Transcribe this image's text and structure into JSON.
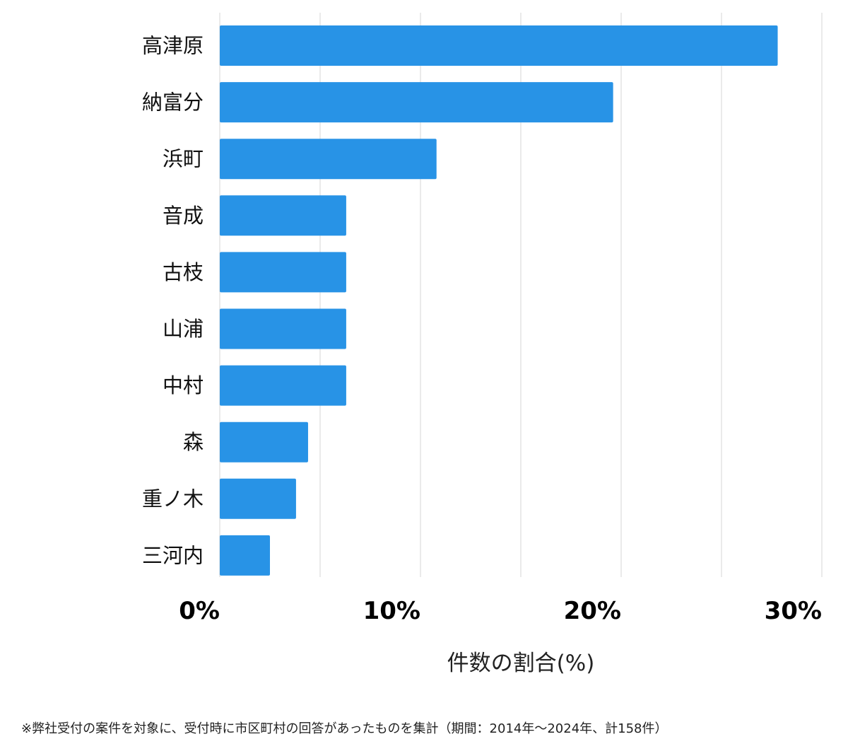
{
  "chart_data": {
    "type": "bar",
    "orientation": "horizontal",
    "categories": [
      "高津原",
      "納富分",
      "浜町",
      "音成",
      "古枝",
      "山浦",
      "中村",
      "森",
      "重ノ木",
      "三河内"
    ],
    "values": [
      27.8,
      19.6,
      10.8,
      6.3,
      6.3,
      6.3,
      6.3,
      4.4,
      3.8,
      2.5
    ],
    "xlabel": "件数の割合(%)",
    "ylabel": "",
    "xlim": [
      0,
      30
    ],
    "xticks": [
      0,
      10,
      20,
      30
    ],
    "xtick_labels": [
      "0%",
      "10%",
      "20%",
      "30%"
    ],
    "gridlines_every": 5,
    "grid": true,
    "bar_color": "#2893e6"
  },
  "footnote": "※弊社受付の案件を対象に、受付時に市区町村の回答があったものを集計（期間：2014年〜2024年、計158件）"
}
